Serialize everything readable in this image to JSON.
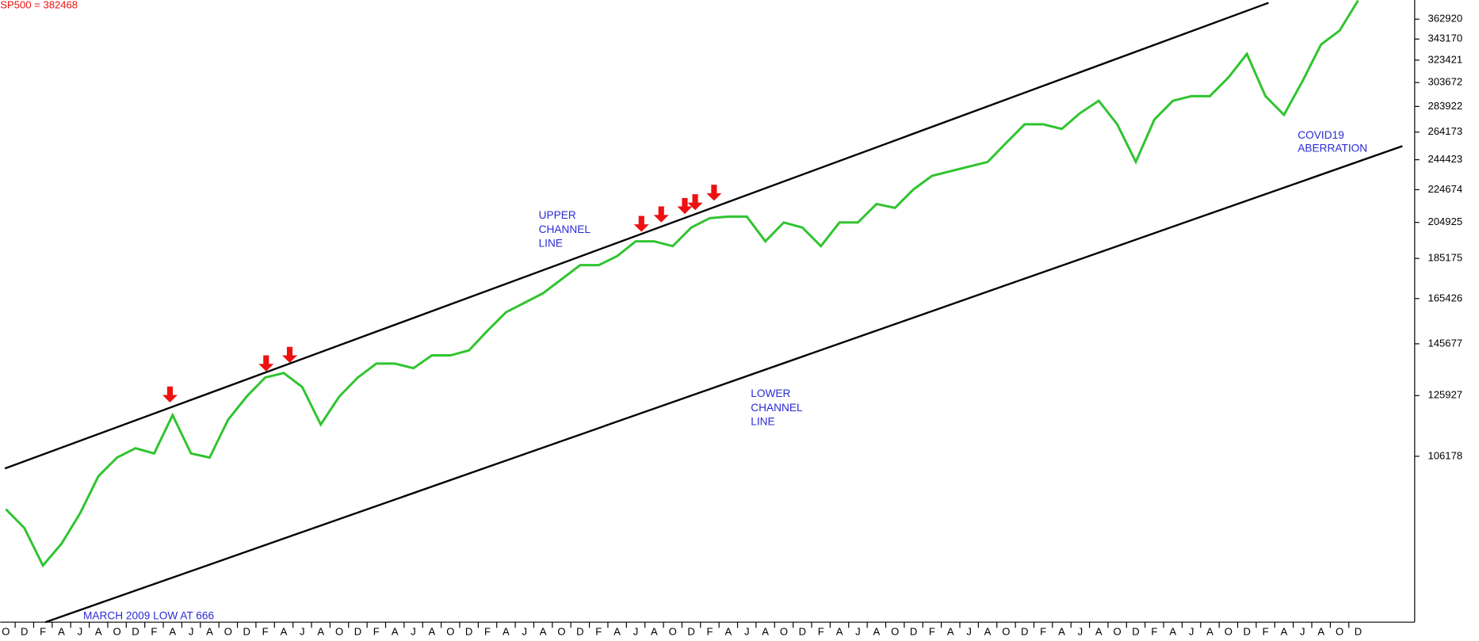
{
  "chart_data": {
    "type": "line",
    "title": "SP500 = 382468",
    "categories": [
      "O",
      "D",
      "F",
      "A",
      "J",
      "A",
      "O",
      "D",
      "F",
      "A",
      "J",
      "A",
      "O",
      "D",
      "F",
      "A",
      "J",
      "A",
      "O",
      "D",
      "F",
      "A",
      "J",
      "A",
      "O",
      "D",
      "F",
      "A",
      "J",
      "A",
      "O",
      "D",
      "F",
      "A",
      "J",
      "A",
      "O",
      "D",
      "F",
      "A",
      "J",
      "A",
      "O",
      "D",
      "F",
      "A",
      "J",
      "A",
      "O",
      "D",
      "F",
      "A",
      "J",
      "A",
      "O",
      "D",
      "F",
      "A",
      "J",
      "A",
      "O",
      "D",
      "F",
      "A",
      "J",
      "A",
      "O",
      "D",
      "F",
      "A",
      "J",
      "A",
      "O",
      "D"
    ],
    "series": [
      {
        "name": "SP500",
        "color": "#2fc42f",
        "values": [
          91500,
          86800,
          78100,
          83000,
          90400,
          100400,
          105800,
          108600,
          107000,
          119200,
          107000,
          105800,
          117700,
          125600,
          132500,
          134200,
          129000,
          116100,
          125600,
          132500,
          137800,
          137800,
          136000,
          141000,
          141000,
          143000,
          151100,
          159200,
          163500,
          167900,
          174700,
          181700,
          181700,
          186400,
          194300,
          194300,
          191700,
          202000,
          207400,
          208300,
          208300,
          194300,
          204900,
          202000,
          191700,
          204900,
          204900,
          215800,
          213500,
          224900,
          233600,
          236700,
          239800,
          242900,
          256300,
          270000,
          270000,
          266500,
          278700,
          288500,
          270000,
          242900,
          273600,
          288500,
          292300,
          292300,
          308000,
          329100,
          292300,
          277300,
          304900,
          338000,
          351400,
          382468
        ]
      }
    ],
    "ylim": [
      66600,
      383000
    ],
    "yticks": [
      362920,
      343170,
      323421,
      303672,
      283922,
      264173,
      244423,
      224674,
      204925,
      185175,
      165426,
      145677,
      125927,
      106178
    ],
    "log_scale": true,
    "annotations": {
      "upper": [
        "UPPER",
        "CHANNEL",
        "LINE"
      ],
      "lower": [
        "LOWER",
        "CHANNEL",
        "LINE"
      ],
      "covid": [
        "COVID19",
        "ABERRATION"
      ],
      "low": "MARCH 2009 LOW AT 666"
    }
  }
}
